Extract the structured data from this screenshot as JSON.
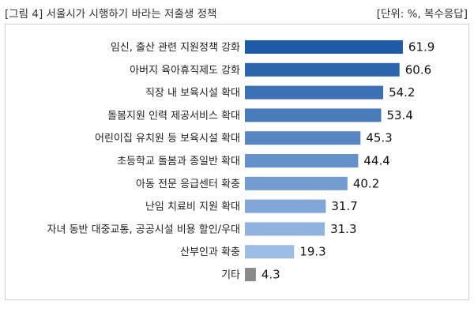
{
  "header": {
    "title": "[그림 4] 서울시가 시행하기 바라는 저출생 정책",
    "unit": "[단위: %, 복수응답]"
  },
  "chart_data": {
    "type": "bar",
    "orientation": "horizontal",
    "title": "[그림 4] 서울시가 시행하기 바라는 저출생 정책",
    "unit": "[단위: %, 복수응답]",
    "categories": [
      "임신, 출산 관련 지원정책 강화",
      "아버지 육아휴직제도 강화",
      "직장 내 보육시설 확대",
      "돌봄지원 인력 제공서비스 확대",
      "어린이집 유치원 등 보육시설 확대",
      "초등학교 돌봄과 종일반 확대",
      "아동 전문 응급센터 확충",
      "난임 치료비 지원 확대",
      "자녀 동반 대중교통, 공공시설 비용 할인/우대",
      "산부인과 확충",
      "기타"
    ],
    "values": [
      61.9,
      60.6,
      54.2,
      53.4,
      45.3,
      44.4,
      40.2,
      31.7,
      31.3,
      19.3,
      4.3
    ],
    "value_labels": [
      "61.9",
      "60.6",
      "54.2",
      "53.4",
      "45.3",
      "44.4",
      "40.2",
      "31.7",
      "31.3",
      "19.3",
      "4.3"
    ],
    "xlim": [
      0,
      65
    ],
    "grid": false,
    "legend": "none",
    "colors": {
      "bar_top": "#1f5aa6",
      "bar_bottom": "#9dbde6",
      "other": "#8a8a8a"
    }
  }
}
